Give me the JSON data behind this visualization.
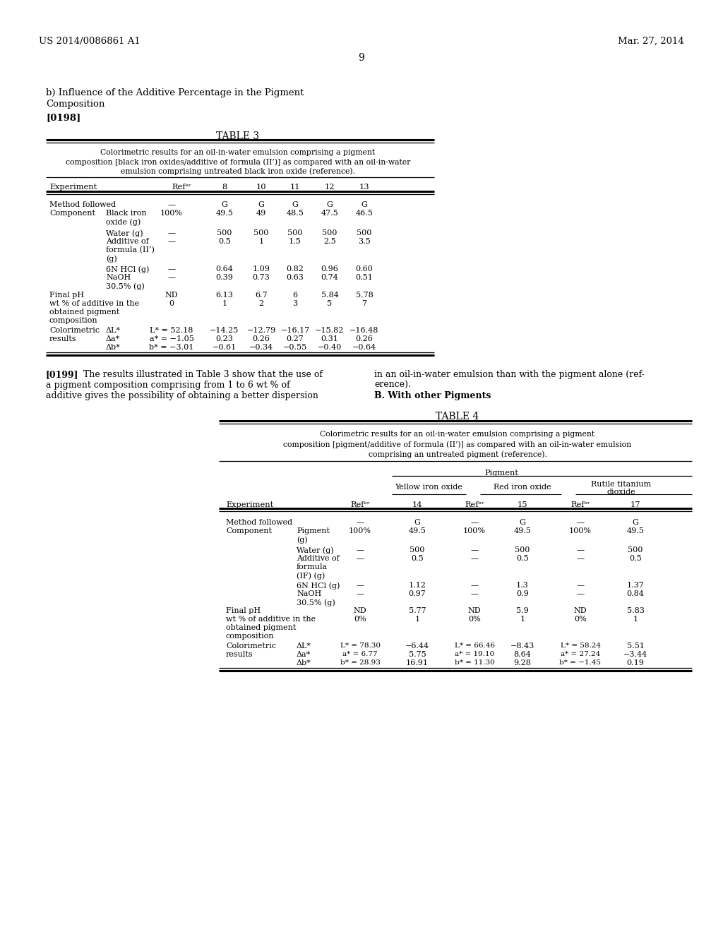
{
  "bg_color": "#ffffff",
  "header_left": "US 2014/0086861 A1",
  "header_right": "Mar. 27, 2014",
  "page_number": "9",
  "section_title_line1": "b) Influence of the Additive Percentage in the Pigment",
  "section_title_line2": "Composition",
  "paragraph_ref1": "[0198]",
  "table3_title": "TABLE 3",
  "table3_caption_lines": [
    "Colorimetric results for an oil-in-water emulsion comprising a pigment",
    "composition [black iron oxides/additive of formula (II’)] as compared with an oil-in-water",
    "emulsion comprising untreated black iron oxide (reference)."
  ],
  "table4_title": "TABLE 4",
  "table4_caption_lines": [
    "Colorimetric results for an oil-in-water emulsion comprising a pigment",
    "composition [pigment/additive of formula (II’)] as compared with an oil-in-water emulsion",
    "comprising an untreated pigment (reference)."
  ],
  "paragraph_ref2": "[0199]",
  "para_left_lines": [
    "The results illustrated in Table 3 show that the use of",
    "a pigment composition comprising from 1 to 6 wt % of",
    "additive gives the possibility of obtaining a better dispersion"
  ],
  "para_right_lines": [
    "in an oil-in-water emulsion than with the pigment alone (ref-",
    "erence).",
    "B. With other Pigments"
  ]
}
